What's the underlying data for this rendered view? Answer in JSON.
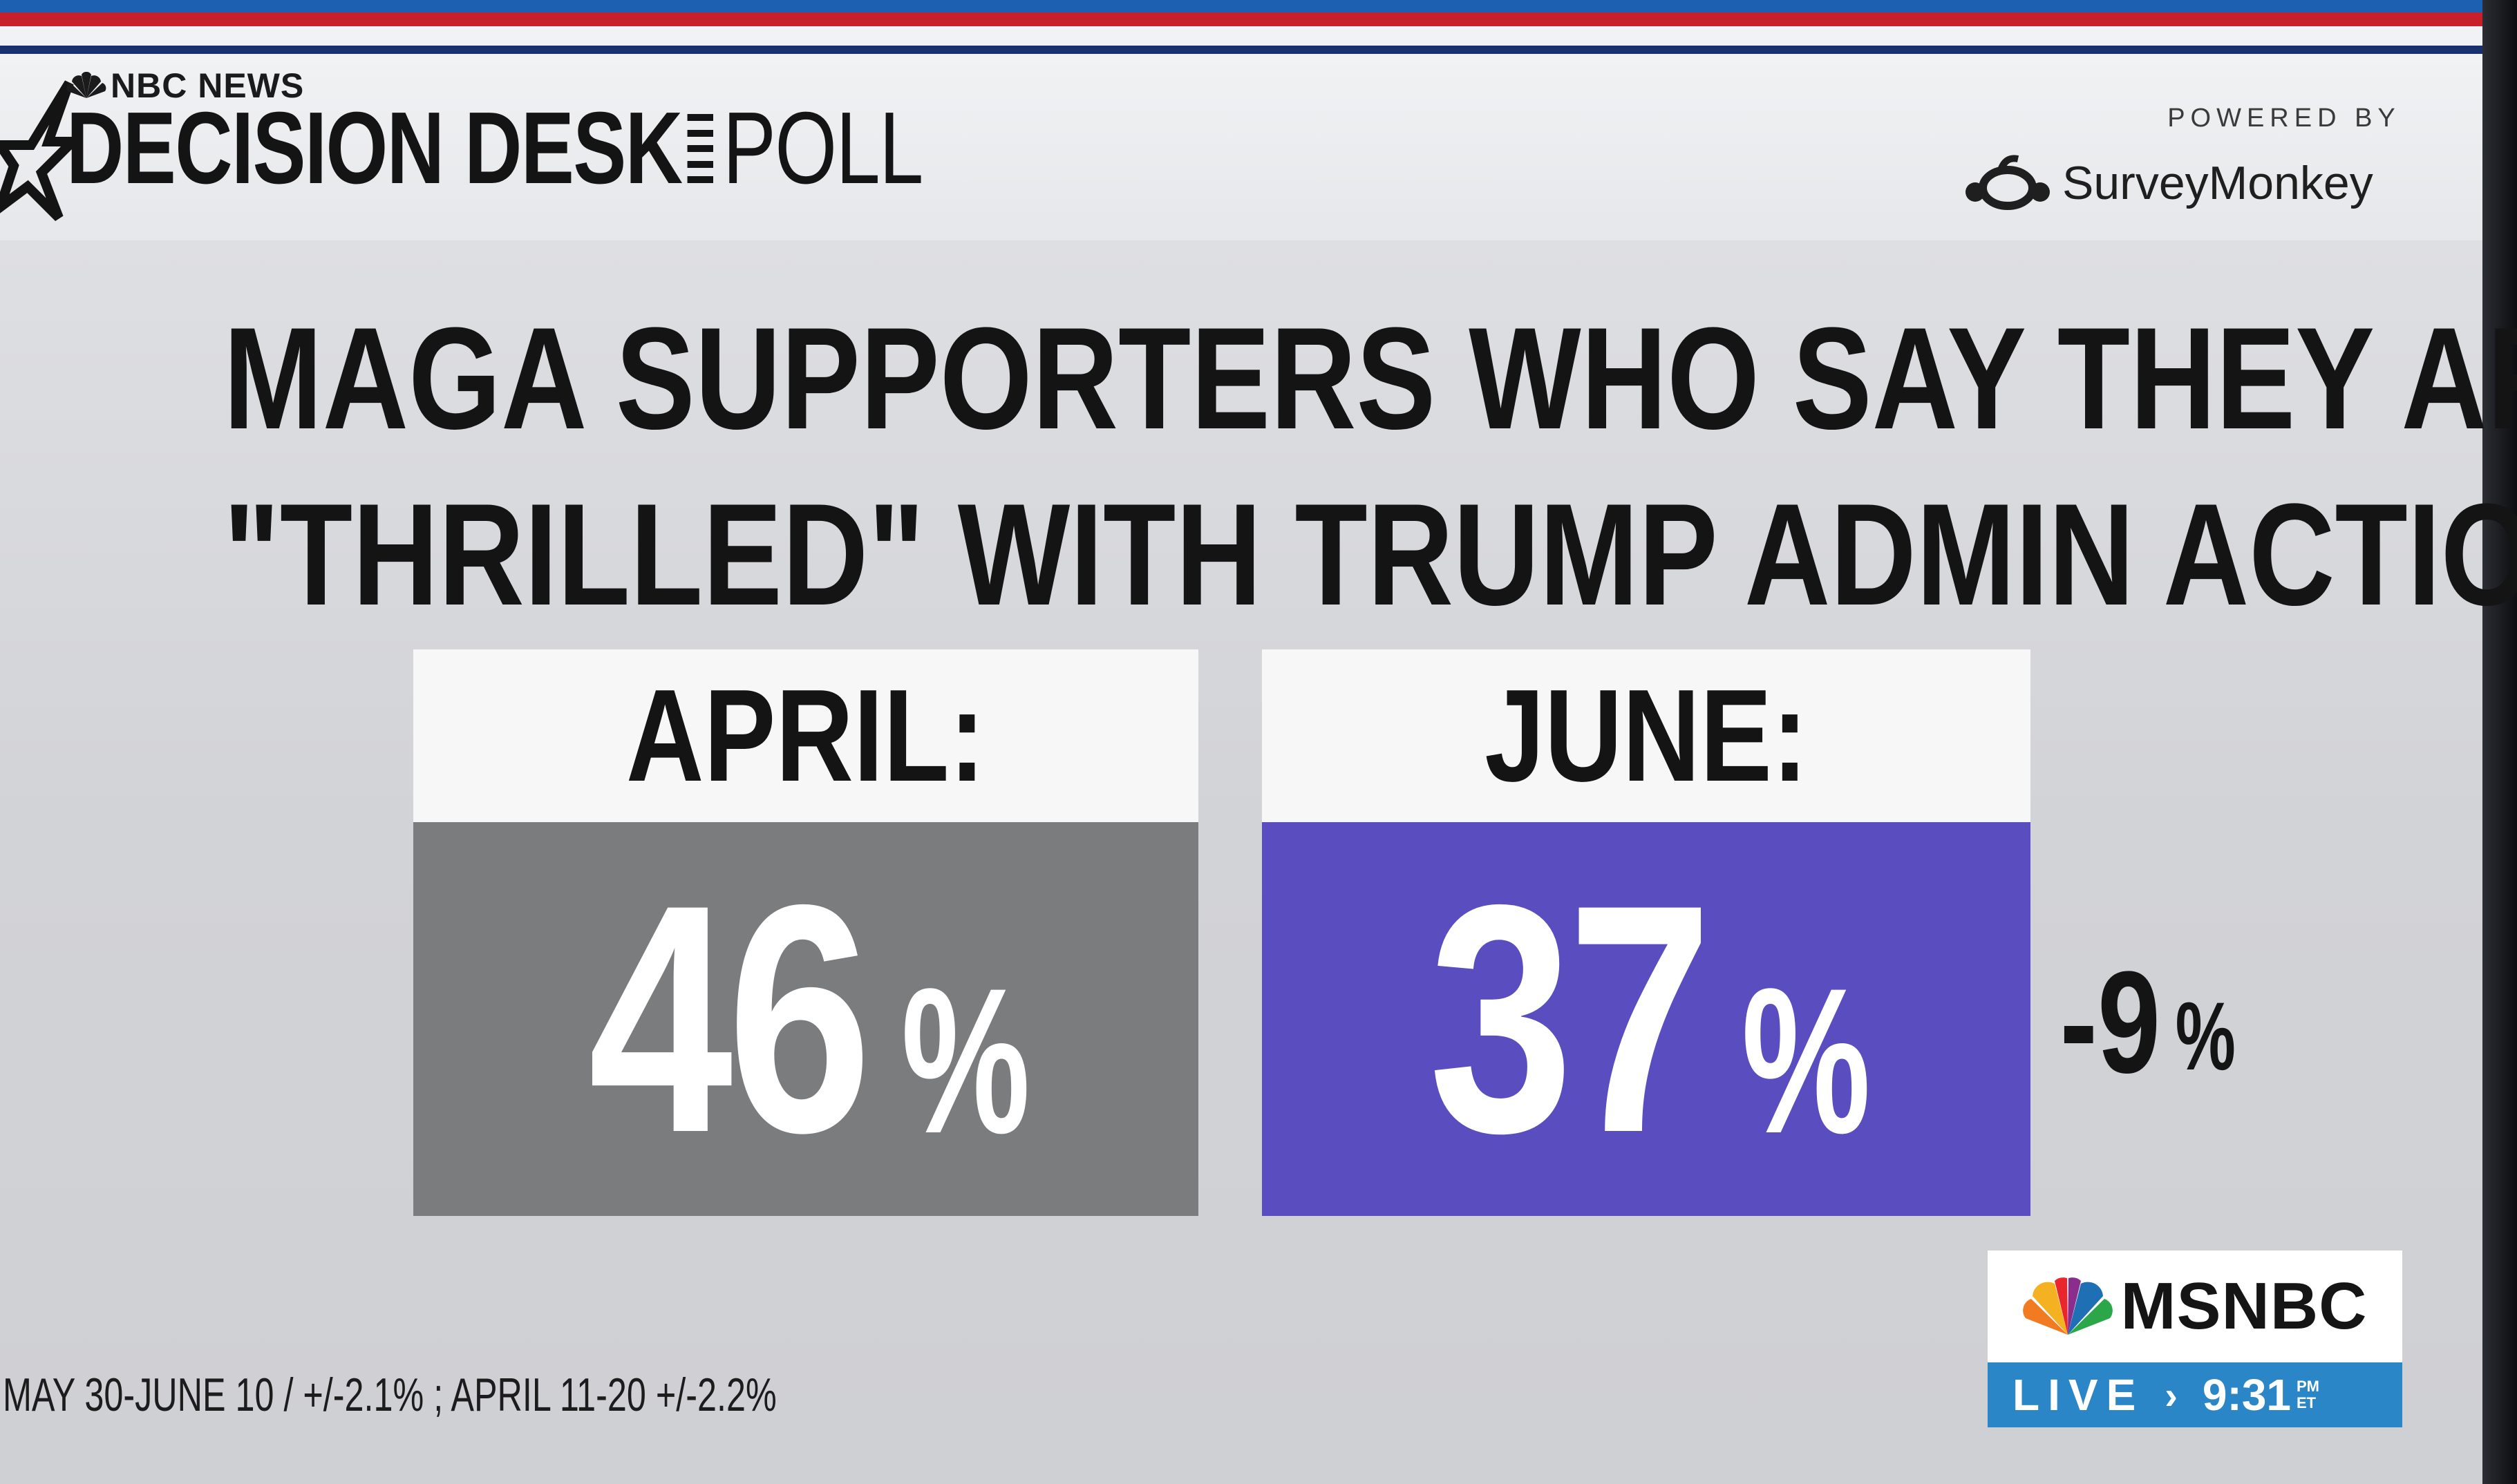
{
  "header": {
    "network_label": "NBC NEWS",
    "title_main": "DECISION DESK",
    "title_suffix": "POLL",
    "powered_by": "POWERED BY",
    "sponsor": "SurveyMonkey"
  },
  "headline": {
    "line1": "MAGA SUPPORTERS WHO SAY THEY ARE",
    "line2": "\"THRILLED\" WITH TRUMP ADMIN ACTIONS:"
  },
  "results": [
    {
      "label": "APRIL:",
      "value": "46",
      "unit": "%",
      "color": "#7a7c7e"
    },
    {
      "label": "JUNE:",
      "value": "37",
      "unit": "%",
      "color": "#5a4dbf"
    }
  ],
  "change": {
    "value": "-9",
    "unit": "%"
  },
  "footnote": "MAY 30-JUNE 10 / +/-2.1% ; APRIL 11-20 +/-2.2%",
  "bug": {
    "brand": "MSNBC",
    "live": "LIVE",
    "chevron": "›",
    "time": "9:31",
    "ampm": "PM",
    "tz": "ET"
  },
  "icons": [
    "star-icon",
    "peacock-icon",
    "surveymonkey-logo-icon"
  ]
}
